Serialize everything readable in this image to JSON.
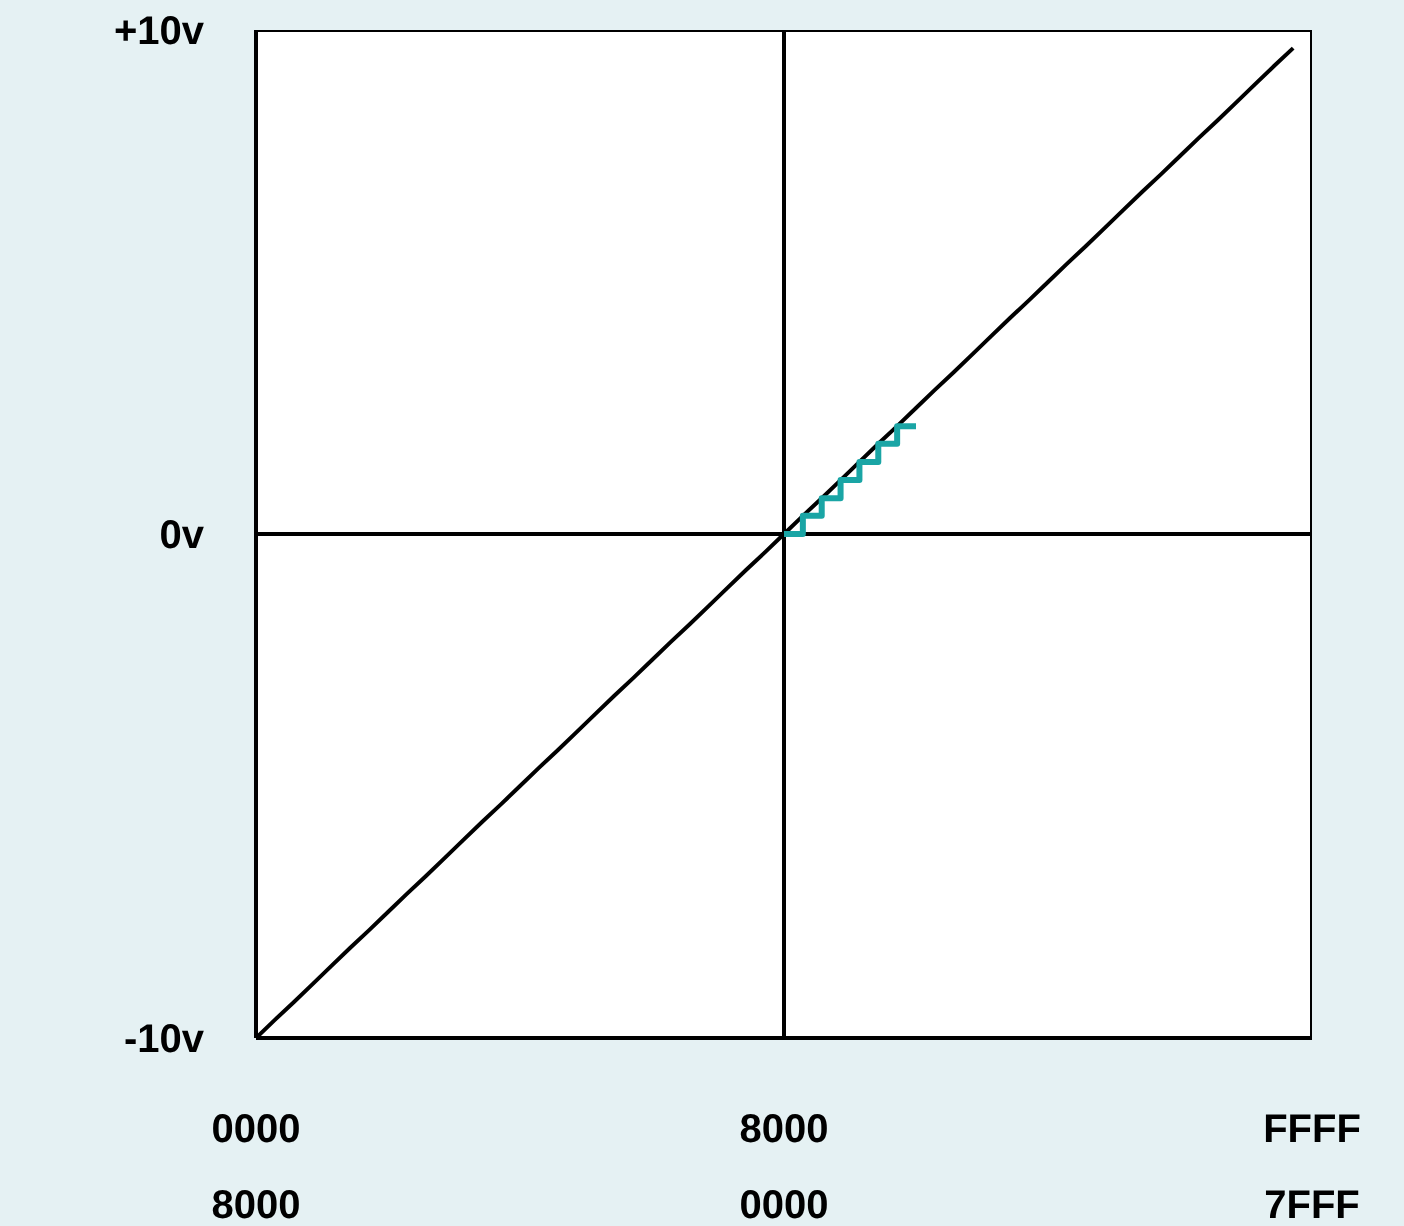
{
  "chart_data": {
    "type": "line",
    "ylim": [
      -10,
      10
    ],
    "categories": [
      "0000\n8000",
      null,
      null,
      null,
      null,
      null,
      null,
      null,
      null,
      null,
      null,
      null,
      null,
      null,
      null,
      null,
      null,
      null,
      null,
      null,
      null,
      null,
      null,
      null,
      null,
      null,
      null,
      null,
      "8000\n0000",
      null,
      null,
      null,
      null,
      null,
      null,
      null,
      null,
      null,
      null,
      null,
      null,
      null,
      null,
      null,
      null,
      null,
      null,
      null,
      null,
      null,
      null,
      null,
      null,
      null,
      null,
      null,
      "FFFF\n7FFF"
    ],
    "yticks": [
      {
        "value": -10,
        "label": "-10v"
      },
      {
        "value": 0,
        "label": "0v"
      },
      {
        "value": 10,
        "label": "+10v"
      }
    ],
    "marker": "none",
    "grid": false,
    "legend": false,
    "ref_lines": [
      {
        "axis": "x",
        "value": "8000\n0000",
        "color": "#000000"
      },
      {
        "axis": "y",
        "value": 0,
        "color": "#000000"
      }
    ],
    "series": [
      {
        "type": "line",
        "color": "#000000",
        "values": [
          -10,
          -9.64,
          -9.29,
          -8.93,
          -8.57,
          -8.21,
          -7.86,
          -7.5,
          -7.14,
          -6.79,
          -6.43,
          -6.07,
          -5.71,
          -5.36,
          -5,
          -4.64,
          -4.29,
          -3.93,
          -3.57,
          -3.21,
          -2.86,
          -2.5,
          -2.14,
          -1.79,
          -1.43,
          -1.07,
          -0.71,
          -0.36,
          0,
          0.36,
          0.71,
          1.07,
          1.43,
          1.79,
          2.14,
          2.5,
          2.86,
          3.21,
          3.57,
          3.93,
          4.29,
          4.64,
          5,
          5.36,
          5.71,
          6.07,
          6.43,
          6.79,
          7.14,
          7.5,
          7.86,
          8.21,
          8.57,
          8.93,
          9.29,
          9.64,
          null
        ]
      },
      {
        "type": "step",
        "color": "#1aa5a5",
        "values": [
          null,
          null,
          null,
          null,
          null,
          null,
          null,
          null,
          null,
          null,
          null,
          null,
          null,
          null,
          null,
          null,
          null,
          null,
          null,
          null,
          null,
          null,
          null,
          null,
          null,
          null,
          null,
          null,
          0,
          0.36,
          0.71,
          1.07,
          1.43,
          1.79,
          2.14,
          2.14,
          null,
          null,
          null,
          null,
          null,
          null,
          null,
          null,
          null,
          null,
          null,
          null,
          null,
          null,
          null,
          null,
          null,
          null,
          null,
          null,
          null
        ]
      }
    ]
  }
}
